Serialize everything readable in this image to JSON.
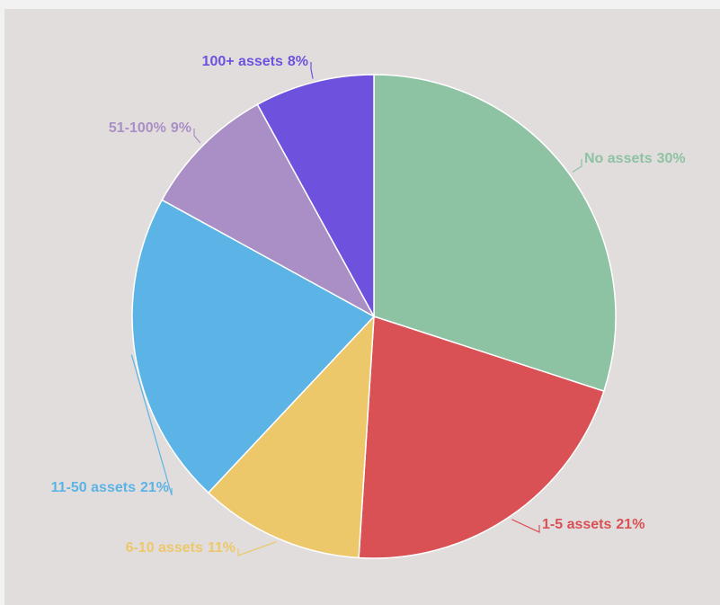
{
  "chart_data": {
    "type": "pie",
    "categories": [
      "No assets",
      "1-5 assets",
      "6-10 assets",
      "11-50 assets",
      "51-100%",
      "100+ assets"
    ],
    "values": [
      30,
      21,
      11,
      21,
      9,
      8
    ],
    "value_labels": [
      "30%",
      "21%",
      "11%",
      "21%",
      "9%",
      "8%"
    ],
    "colors": [
      "#8dc2a3",
      "#d95055",
      "#ecc86a",
      "#5bb4e5",
      "#a98fc5",
      "#6e52de"
    ]
  }
}
